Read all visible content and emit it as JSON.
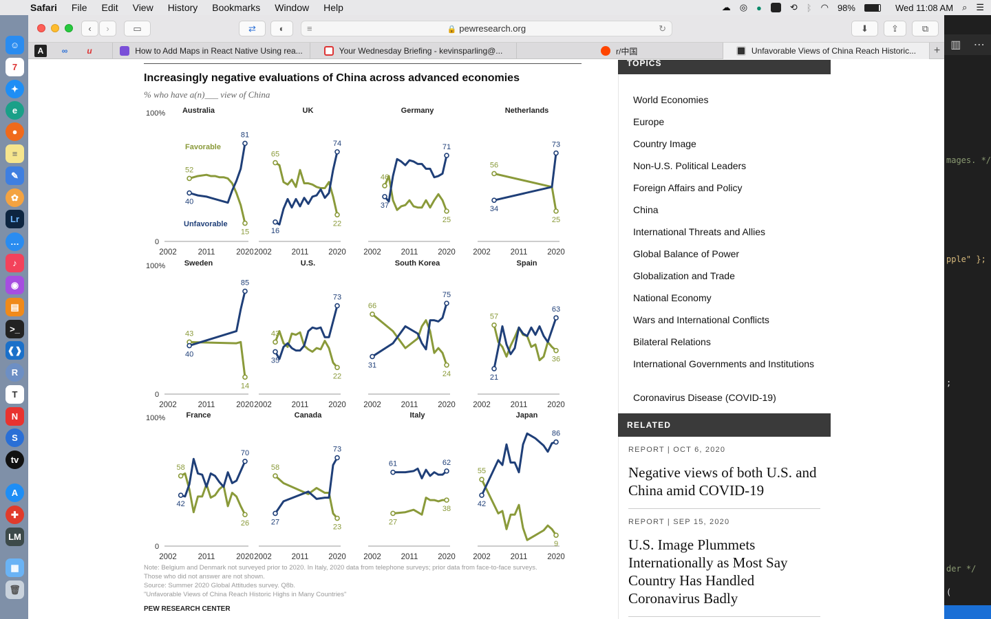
{
  "menubar": {
    "apple": "",
    "items": [
      "Safari",
      "File",
      "Edit",
      "View",
      "History",
      "Bookmarks",
      "Window",
      "Help"
    ],
    "battery": "98%",
    "clock": "Wed 11:08 AM"
  },
  "safari": {
    "url": "pewresearch.org",
    "tabs": [
      {
        "title": "How to Add Maps in React Native Using rea..."
      },
      {
        "title": "Your Wednesday Briefing - kevinsparling@..."
      },
      {
        "title": "r/中国"
      },
      {
        "title": "Unfavorable Views of China Reach Historic..."
      }
    ],
    "new_tab": "+"
  },
  "editor": {
    "lines": [
      "mages. */",
      "pple\" };",
      ";",
      "der */",
      "("
    ]
  },
  "chart": {
    "title": "Increasingly negative evaluations of China across advanced economies",
    "subtitle": "% who have a(n)___ view of China",
    "y_top": "100%",
    "y_zero": "0",
    "series_labels": {
      "favorable": "Favorable",
      "unfavorable": "Unfavorable"
    },
    "notes": [
      "Note: Belgium and Denmark not surveyed prior to 2020. In Italy, 2020 data from telephone surveys; prior data from face-to-face surveys.",
      "Those who did not answer are not shown.",
      "Source: Summer 2020 Global Attitudes survey. Q8b.",
      "\"Unfavorable Views of China Reach Historic Highs in Many Countries\""
    ],
    "brand": "PEW RESEARCH CENTER"
  },
  "chart_data": [
    {
      "type": "line",
      "title": "Australia",
      "x": [
        2007,
        2008,
        2009,
        2011,
        2012,
        2013,
        2014,
        2015,
        2016,
        2017,
        2018,
        2019,
        2020
      ],
      "series": [
        {
          "name": "Favorable",
          "values": [
            52,
            53,
            54,
            55,
            54,
            54,
            53,
            53,
            52,
            48,
            40,
            30,
            15
          ]
        },
        {
          "name": "Unfavorable",
          "values": [
            40,
            39,
            38,
            37,
            36,
            35,
            34,
            33,
            32,
            42,
            50,
            60,
            81
          ]
        }
      ],
      "ylim": [
        0,
        100
      ],
      "xticks": [
        "2002",
        "2011",
        "2020"
      ]
    },
    {
      "type": "line",
      "title": "UK",
      "x": [
        2005,
        2006,
        2007,
        2008,
        2009,
        2010,
        2011,
        2012,
        2013,
        2014,
        2015,
        2016,
        2017,
        2018,
        2019,
        2020
      ],
      "series": [
        {
          "name": "Favorable",
          "values": [
            65,
            63,
            49,
            47,
            51,
            45,
            59,
            48,
            48,
            47,
            45,
            44,
            44,
            49,
            37,
            22
          ]
        },
        {
          "name": "Unfavorable",
          "values": [
            16,
            14,
            27,
            35,
            28,
            35,
            29,
            36,
            31,
            37,
            38,
            43,
            36,
            40,
            59,
            74
          ]
        }
      ],
      "ylim": [
        0,
        100
      ],
      "xticks": [
        "2002",
        "2011",
        "2020"
      ]
    },
    {
      "type": "line",
      "title": "Germany",
      "x": [
        2005,
        2006,
        2007,
        2008,
        2009,
        2010,
        2011,
        2012,
        2013,
        2014,
        2015,
        2016,
        2017,
        2018,
        2019,
        2020
      ],
      "series": [
        {
          "name": "Favorable",
          "values": [
            46,
            54,
            34,
            26,
            29,
            30,
            34,
            29,
            28,
            28,
            34,
            28,
            34,
            39,
            34,
            25
          ]
        },
        {
          "name": "Unfavorable",
          "values": [
            37,
            33,
            54,
            68,
            66,
            63,
            67,
            66,
            64,
            64,
            60,
            60,
            53,
            54,
            56,
            71
          ]
        }
      ],
      "ylim": [
        0,
        100
      ],
      "xticks": [
        "2002",
        "2011",
        "2020"
      ]
    },
    {
      "type": "line",
      "title": "Netherlands",
      "x": [
        2005,
        2019,
        2020
      ],
      "series": [
        {
          "name": "Favorable",
          "values": [
            56,
            45,
            25
          ]
        },
        {
          "name": "Unfavorable",
          "values": [
            34,
            45,
            73
          ]
        }
      ],
      "ylim": [
        0,
        100
      ],
      "xticks": [
        "2002",
        "2011",
        "2020"
      ]
    },
    {
      "type": "line",
      "title": "Sweden",
      "x": [
        2007,
        2018,
        2019,
        2020
      ],
      "series": [
        {
          "name": "Favorable",
          "values": [
            43,
            42,
            43,
            14
          ]
        },
        {
          "name": "Unfavorable",
          "values": [
            40,
            52,
            70,
            85
          ]
        }
      ],
      "ylim": [
        0,
        100
      ],
      "xticks": [
        "2002",
        "2011",
        "2020"
      ]
    },
    {
      "type": "line",
      "title": "U.S.",
      "x": [
        2005,
        2006,
        2007,
        2008,
        2009,
        2010,
        2011,
        2012,
        2013,
        2014,
        2015,
        2016,
        2017,
        2018,
        2019,
        2020
      ],
      "series": [
        {
          "name": "Favorable",
          "values": [
            43,
            52,
            42,
            39,
            50,
            49,
            51,
            40,
            37,
            35,
            38,
            37,
            44,
            38,
            26,
            22
          ]
        },
        {
          "name": "Unfavorable",
          "values": [
            35,
            29,
            39,
            42,
            38,
            36,
            36,
            40,
            52,
            55,
            54,
            55,
            47,
            47,
            60,
            73
          ]
        }
      ],
      "ylim": [
        0,
        100
      ],
      "xticks": [
        "2002",
        "2011",
        "2020"
      ]
    },
    {
      "type": "line",
      "title": "South Korea",
      "x": [
        2002,
        2007,
        2010,
        2013,
        2014,
        2015,
        2016,
        2017,
        2018,
        2019,
        2020
      ],
      "series": [
        {
          "name": "Favorable",
          "values": [
            66,
            52,
            38,
            46,
            56,
            61,
            52,
            34,
            38,
            34,
            24
          ]
        },
        {
          "name": "Unfavorable",
          "values": [
            31,
            42,
            56,
            50,
            42,
            37,
            61,
            61,
            60,
            63,
            75
          ]
        }
      ],
      "ylim": [
        0,
        100
      ],
      "xticks": [
        "2002",
        "2011",
        "2020"
      ]
    },
    {
      "type": "line",
      "title": "Spain",
      "x": [
        2005,
        2006,
        2007,
        2008,
        2009,
        2010,
        2011,
        2012,
        2013,
        2014,
        2015,
        2016,
        2017,
        2018,
        2019,
        2020
      ],
      "series": [
        {
          "name": "Favorable",
          "values": [
            57,
            43,
            39,
            31,
            40,
            47,
            55,
            49,
            48,
            39,
            41,
            28,
            31,
            43,
            39,
            36
          ]
        },
        {
          "name": "Unfavorable",
          "values": [
            21,
            38,
            56,
            41,
            33,
            38,
            55,
            50,
            48,
            55,
            49,
            56,
            48,
            43,
            53,
            63
          ]
        }
      ],
      "ylim": [
        0,
        100
      ],
      "xticks": [
        "2002",
        "2011",
        "2020"
      ]
    },
    {
      "type": "line",
      "title": "France",
      "x": [
        2005,
        2006,
        2007,
        2008,
        2009,
        2010,
        2011,
        2012,
        2013,
        2014,
        2015,
        2016,
        2017,
        2018,
        2019,
        2020
      ],
      "series": [
        {
          "name": "Favorable",
          "values": [
            58,
            60,
            47,
            28,
            41,
            41,
            51,
            40,
            42,
            47,
            50,
            33,
            44,
            41,
            33,
            26
          ]
        },
        {
          "name": "Unfavorable",
          "values": [
            42,
            41,
            51,
            72,
            60,
            59,
            49,
            60,
            58,
            53,
            49,
            61,
            52,
            54,
            62,
            70
          ]
        }
      ],
      "ylim": [
        0,
        100
      ],
      "xticks": [
        "2002",
        "2011",
        "2020"
      ]
    },
    {
      "type": "line",
      "title": "Canada",
      "x": [
        2005,
        2007,
        2013,
        2015,
        2017,
        2018,
        2019,
        2020
      ],
      "series": [
        {
          "name": "Favorable",
          "values": [
            58,
            52,
            43,
            48,
            44,
            44,
            27,
            23
          ]
        },
        {
          "name": "Unfavorable",
          "values": [
            27,
            37,
            45,
            39,
            40,
            40,
            67,
            73
          ]
        }
      ],
      "ylim": [
        0,
        100
      ],
      "xticks": [
        "2002",
        "2011",
        "2020"
      ]
    },
    {
      "type": "line",
      "title": "Italy",
      "x": [
        2007,
        2010,
        2012,
        2013,
        2014,
        2015,
        2016,
        2017,
        2018,
        2019,
        2020
      ],
      "series": [
        {
          "name": "Favorable",
          "values": [
            27,
            28,
            30,
            28,
            26,
            40,
            38,
            38,
            37,
            38,
            38
          ]
        },
        {
          "name": "Unfavorable",
          "values": [
            61,
            61,
            62,
            64,
            56,
            63,
            58,
            61,
            59,
            59,
            62
          ]
        }
      ],
      "ylim": [
        0,
        100
      ],
      "xticks": [
        "2002",
        "2011",
        "2020"
      ]
    },
    {
      "type": "line",
      "title": "Japan",
      "x": [
        2002,
        2006,
        2007,
        2008,
        2009,
        2010,
        2011,
        2012,
        2013,
        2014,
        2015,
        2016,
        2017,
        2018,
        2019,
        2020
      ],
      "series": [
        {
          "name": "Favorable",
          "values": [
            55,
            27,
            29,
            14,
            26,
            26,
            34,
            15,
            5,
            7,
            9,
            11,
            13,
            17,
            14,
            9
          ]
        },
        {
          "name": "Unfavorable",
          "values": [
            42,
            71,
            67,
            84,
            69,
            69,
            61,
            84,
            93,
            91,
            89,
            86,
            83,
            78,
            85,
            86
          ]
        }
      ],
      "ylim": [
        0,
        100
      ],
      "xticks": [
        "2002",
        "2011",
        "2020"
      ]
    }
  ],
  "sidebar": {
    "topics_head": "TOPICS",
    "topics": [
      "World Economies",
      "Europe",
      "Country Image",
      "Non-U.S. Political Leaders",
      "Foreign Affairs and Policy",
      "China",
      "International Threats and Allies",
      "Global Balance of Power",
      "Globalization and Trade",
      "National Economy",
      "Wars and International Conflicts",
      "Bilateral Relations",
      "International Governments and Institutions",
      "Coronavirus Disease (COVID-19)"
    ],
    "related_head": "RELATED",
    "related": [
      {
        "meta": "REPORT | OCT 6, 2020",
        "title": "Negative views of both U.S. and China amid COVID-19"
      },
      {
        "meta": "REPORT | SEP 15, 2020",
        "title": "U.S. Image Plummets Internationally as Most Say Country Has Handled Coronavirus Badly"
      }
    ]
  },
  "colors": {
    "favorable": "#8a9a3a",
    "unfavorable": "#1f3f78",
    "menubar": "#e8e8ea"
  }
}
